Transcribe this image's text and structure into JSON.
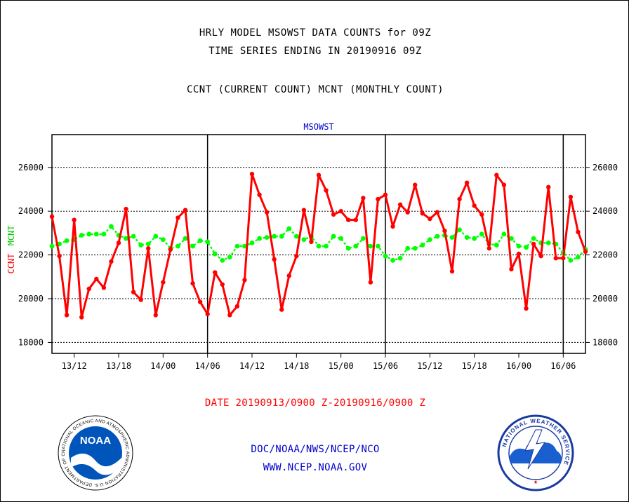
{
  "title_line1": "HRLY MODEL MSOWST DATA COUNTS for 09Z",
  "title_line2": "TIME SERIES ENDING IN 20190916 09Z",
  "subtitle": "CCNT (CURRENT COUNT) MCNT (MONTHLY COUNT)",
  "date_range": "DATE 20190913/0900 Z-20190916/0900 Z",
  "footer_org": "DOC/NOAA/NWS/NCEP/NCO",
  "footer_url": "WWW.NCEP.NOAA.GOV",
  "logos": {
    "noaa": {
      "label": "NOAA",
      "ring_text": "NATIONAL OCEANIC AND ATMOSPHERIC ADMINISTRATION U.S. DEPARTMENT OF COMMERCE"
    },
    "nws": {
      "ring_text": "NATIONAL WEATHER SERVICE"
    }
  },
  "colors": {
    "ccnt": "#ff0000",
    "mcnt": "#00ff00",
    "plot_label": "#0000cc",
    "date_text": "#ff0000",
    "footer_text": "#0000cc"
  },
  "chart_data": {
    "type": "line",
    "title": "MSOWST",
    "ylabel": [
      {
        "text": "CCNT",
        "color": "#ff0000"
      },
      {
        "text": "MCNT",
        "color": "#00ff00"
      }
    ],
    "x_tick_labels": [
      "13/12",
      "13/18",
      "14/00",
      "14/06",
      "14/12",
      "14/18",
      "15/00",
      "15/06",
      "15/12",
      "15/18",
      "16/00",
      "16/06"
    ],
    "x_tick_hours": [
      3,
      9,
      15,
      21,
      27,
      33,
      39,
      45,
      51,
      57,
      63,
      69
    ],
    "day_boundaries_hours": [
      21,
      45,
      69
    ],
    "x_range": [
      0,
      72
    ],
    "ylim": [
      17500,
      27500
    ],
    "yticks": [
      18000,
      20000,
      22000,
      24000,
      26000
    ],
    "grid": true,
    "series": [
      {
        "name": "CCNT",
        "color": "#ff0000",
        "values": [
          23750,
          21950,
          19250,
          23600,
          19150,
          20450,
          20900,
          20500,
          21700,
          22550,
          24100,
          20300,
          19950,
          22300,
          19250,
          20750,
          22250,
          23700,
          24050,
          20700,
          19850,
          19300,
          21200,
          20650,
          19250,
          19650,
          20850,
          25700,
          24750,
          23950,
          21800,
          19500,
          21050,
          21950,
          24050,
          22600,
          25650,
          24950,
          23850,
          24000,
          23600,
          23600,
          24600,
          20750,
          24550,
          24750,
          23300,
          24300,
          23950,
          25200,
          23900,
          23650,
          23950,
          23100,
          21250,
          24550,
          25300,
          24250,
          23850,
          22300,
          25650,
          25200,
          21350,
          22050,
          19550,
          22500,
          21950,
          25100,
          21850,
          21850,
          24650,
          23050,
          22150
        ]
      },
      {
        "name": "MCNT",
        "color": "#00ff00",
        "values": [
          22400,
          22500,
          22650,
          22700,
          22900,
          22950,
          22950,
          22950,
          23300,
          22900,
          22750,
          22850,
          22450,
          22500,
          22850,
          22700,
          22300,
          22400,
          22750,
          22400,
          22650,
          22600,
          22050,
          21750,
          21900,
          22400,
          22400,
          22550,
          22750,
          22800,
          22850,
          22850,
          23200,
          22850,
          22700,
          22850,
          22400,
          22400,
          22850,
          22750,
          22300,
          22400,
          22750,
          22400,
          22400,
          21950,
          21750,
          21850,
          22300,
          22300,
          22450,
          22700,
          22850,
          22900,
          22800,
          23150,
          22800,
          22750,
          22950,
          22500,
          22450,
          22950,
          22750,
          22400,
          22350,
          22750,
          22550,
          22550,
          22500,
          22100,
          21750,
          21900,
          22250
        ]
      }
    ]
  }
}
